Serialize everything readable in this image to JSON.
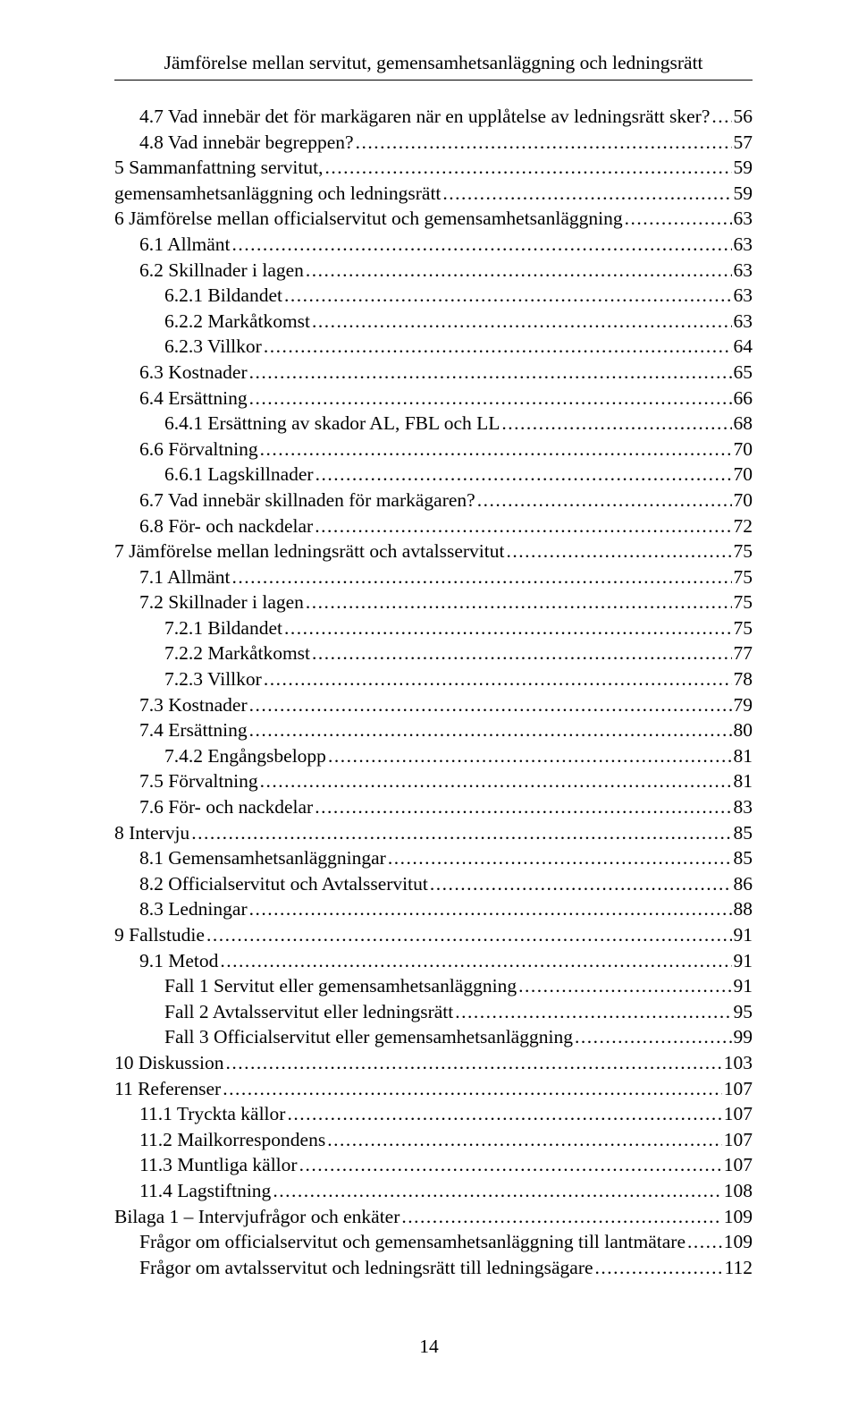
{
  "header": {
    "title": "Jämförelse mellan servitut, gemensamhetsanläggning och ledningsrätt"
  },
  "footer": {
    "page_number": "14"
  },
  "toc": [
    {
      "level": 1,
      "label": "4.7 Vad innebär det för markägaren när en upplåtelse av ledningsrätt sker?",
      "page": "56"
    },
    {
      "level": 1,
      "label": "4.8 Vad innebär begreppen?",
      "page": "57"
    },
    {
      "level": 0,
      "label": "5 Sammanfattning servitut,",
      "page": "59"
    },
    {
      "level": 0,
      "label": "gemensamhetsanläggning och ledningsrätt",
      "page": "59"
    },
    {
      "level": 0,
      "label": "6 Jämförelse mellan officialservitut och gemensamhetsanläggning",
      "page": "63"
    },
    {
      "level": 1,
      "label": "6.1 Allmänt",
      "page": "63"
    },
    {
      "level": 1,
      "label": "6.2 Skillnader i lagen",
      "page": "63"
    },
    {
      "level": 2,
      "label": "6.2.1 Bildandet",
      "page": "63"
    },
    {
      "level": 2,
      "label": "6.2.2 Markåtkomst",
      "page": "63"
    },
    {
      "level": 2,
      "label": "6.2.3 Villkor",
      "page": "64"
    },
    {
      "level": 1,
      "label": "6.3 Kostnader",
      "page": "65"
    },
    {
      "level": 1,
      "label": "6.4 Ersättning",
      "page": "66"
    },
    {
      "level": 2,
      "label": "6.4.1 Ersättning av skador AL, FBL och LL",
      "page": "68"
    },
    {
      "level": 1,
      "label": "6.6 Förvaltning",
      "page": "70"
    },
    {
      "level": 2,
      "label": "6.6.1 Lagskillnader",
      "page": "70"
    },
    {
      "level": 1,
      "label": "6.7 Vad innebär skillnaden för markägaren?",
      "page": "70"
    },
    {
      "level": 1,
      "label": "6.8 För- och nackdelar",
      "page": "72"
    },
    {
      "level": 0,
      "label": "7 Jämförelse mellan ledningsrätt och avtalsservitut",
      "page": "75"
    },
    {
      "level": 1,
      "label": "7.1 Allmänt",
      "page": "75"
    },
    {
      "level": 1,
      "label": "7.2 Skillnader i lagen",
      "page": "75"
    },
    {
      "level": 2,
      "label": "7.2.1 Bildandet",
      "page": "75"
    },
    {
      "level": 2,
      "label": "7.2.2 Markåtkomst",
      "page": "77"
    },
    {
      "level": 2,
      "label": "7.2.3 Villkor",
      "page": "78"
    },
    {
      "level": 1,
      "label": "7.3 Kostnader",
      "page": "79"
    },
    {
      "level": 1,
      "label": "7.4 Ersättning",
      "page": "80"
    },
    {
      "level": 2,
      "label": "7.4.2 Engångsbelopp",
      "page": "81"
    },
    {
      "level": 1,
      "label": "7.5 Förvaltning",
      "page": "81"
    },
    {
      "level": 1,
      "label": "7.6 För- och nackdelar",
      "page": "83"
    },
    {
      "level": 0,
      "label": "8 Intervju",
      "page": "85"
    },
    {
      "level": 1,
      "label": "8.1 Gemensamhetsanläggningar",
      "page": "85"
    },
    {
      "level": 1,
      "label": "8.2 Officialservitut och Avtalsservitut",
      "page": "86"
    },
    {
      "level": 1,
      "label": "8.3 Ledningar",
      "page": "88"
    },
    {
      "level": 0,
      "label": "9 Fallstudie",
      "page": "91"
    },
    {
      "level": 1,
      "label": "9.1 Metod",
      "page": "91"
    },
    {
      "level": 2,
      "label": "Fall 1 Servitut eller gemensamhetsanläggning",
      "page": "91"
    },
    {
      "level": 2,
      "label": "Fall 2 Avtalsservitut eller ledningsrätt",
      "page": "95"
    },
    {
      "level": 2,
      "label": "Fall 3 Officialservitut eller gemensamhetsanläggning",
      "page": "99"
    },
    {
      "level": 0,
      "label": "10 Diskussion",
      "page": "103"
    },
    {
      "level": 0,
      "label": "11 Referenser",
      "page": "107"
    },
    {
      "level": 1,
      "label": "11.1 Tryckta källor",
      "page": "107"
    },
    {
      "level": 1,
      "label": "11.2 Mailkorrespondens",
      "page": "107"
    },
    {
      "level": 1,
      "label": "11.3 Muntliga källor",
      "page": "107"
    },
    {
      "level": 1,
      "label": "11.4 Lagstiftning",
      "page": "108"
    },
    {
      "level": 0,
      "label": "Bilaga 1 – Intervjufrågor och enkäter",
      "page": "109"
    },
    {
      "level": 1,
      "label": "Frågor om officialservitut och gemensamhetsanläggning till lantmätare",
      "page": "109"
    },
    {
      "level": 1,
      "label": "Frågor om avtalsservitut och ledningsrätt till ledningsägare",
      "page": "112"
    }
  ]
}
